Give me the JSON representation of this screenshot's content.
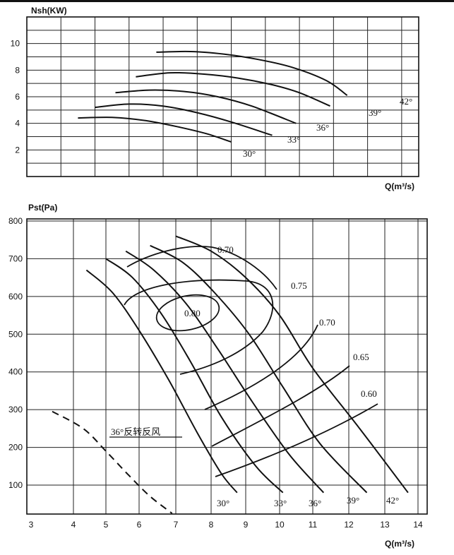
{
  "chart_data": [
    {
      "type": "line",
      "ylabel": "Nsh(KW)",
      "xlabel": "Q(m³/s)",
      "yticks": [
        "2",
        "4",
        "6",
        "8",
        "10"
      ],
      "xlim": [
        3.0,
        14.5
      ],
      "ylim": [
        0,
        12
      ],
      "grid": true,
      "series": [
        {
          "name": "30°",
          "x": [
            4.5,
            5.5,
            6.5,
            7.5,
            8.3,
            9.0
          ],
          "y": [
            4.4,
            4.45,
            4.2,
            3.7,
            3.2,
            2.6
          ]
        },
        {
          "name": "33°",
          "x": [
            5.0,
            6.0,
            7.0,
            8.0,
            9.0,
            10.2
          ],
          "y": [
            5.2,
            5.45,
            5.3,
            4.8,
            4.1,
            3.1
          ]
        },
        {
          "name": "36°",
          "x": [
            5.6,
            6.6,
            7.6,
            8.6,
            9.6,
            10.9
          ],
          "y": [
            6.3,
            6.5,
            6.4,
            6.0,
            5.3,
            4.0
          ]
        },
        {
          "name": "39°",
          "x": [
            6.2,
            7.2,
            8.2,
            9.2,
            10.2,
            11.0,
            11.9
          ],
          "y": [
            7.5,
            7.8,
            7.7,
            7.4,
            6.9,
            6.3,
            5.3
          ]
        },
        {
          "name": "42°",
          "x": [
            6.8,
            7.8,
            8.8,
            9.8,
            10.8,
            11.8,
            12.4
          ],
          "y": [
            9.35,
            9.4,
            9.2,
            8.8,
            8.2,
            7.2,
            6.1
          ]
        }
      ],
      "labels": [
        "30°",
        "33°",
        "36°",
        "39°",
        "42°"
      ]
    },
    {
      "type": "line",
      "ylabel": "Pst(Pa)",
      "xlabel": "Q(m³/s)",
      "xticks": [
        "3",
        "4",
        "5",
        "6",
        "7",
        "8",
        "9",
        "10",
        "11",
        "12",
        "13",
        "14"
      ],
      "yticks": [
        "100",
        "200",
        "300",
        "400",
        "500",
        "600",
        "700",
        "800"
      ],
      "xlim": [
        3.0,
        14.6
      ],
      "ylim": [
        0,
        820
      ],
      "grid": true,
      "series": [
        {
          "name": "30°",
          "x": [
            4.4,
            5.2,
            6.0,
            6.8,
            7.6,
            8.3,
            8.75
          ],
          "y": [
            670,
            610,
            510,
            380,
            240,
            130,
            80
          ]
        },
        {
          "name": "33°",
          "x": [
            5.0,
            5.8,
            6.6,
            7.4,
            8.3,
            9.3,
            10.1
          ],
          "y": [
            700,
            650,
            555,
            430,
            280,
            150,
            80
          ]
        },
        {
          "name": "36°",
          "x": [
            5.6,
            6.4,
            7.3,
            8.2,
            9.2,
            10.3,
            11.3
          ],
          "y": [
            720,
            670,
            580,
            460,
            320,
            180,
            80
          ]
        },
        {
          "name": "39°",
          "x": [
            6.3,
            7.2,
            8.1,
            9.1,
            10.1,
            11.2,
            12.5
          ],
          "y": [
            735,
            690,
            610,
            500,
            360,
            210,
            80
          ]
        },
        {
          "name": "42°",
          "x": [
            7.0,
            8.0,
            9.0,
            10.0,
            11.0,
            12.3,
            13.7
          ],
          "y": [
            760,
            720,
            650,
            550,
            410,
            250,
            80
          ]
        }
      ],
      "efficiency_labels": [
        "0.70",
        "0.75",
        "0.70",
        "0.65",
        "0.60",
        "0.80"
      ],
      "angle_labels": [
        "30°",
        "33°",
        "36°",
        "39°",
        "42°"
      ],
      "reverse_label": "36°反转反风",
      "reverse_curve": {
        "x": [
          3.5,
          4.3,
          5.0,
          5.7,
          6.3,
          6.9
        ],
        "y": [
          295,
          250,
          190,
          125,
          70,
          25
        ]
      }
    }
  ]
}
